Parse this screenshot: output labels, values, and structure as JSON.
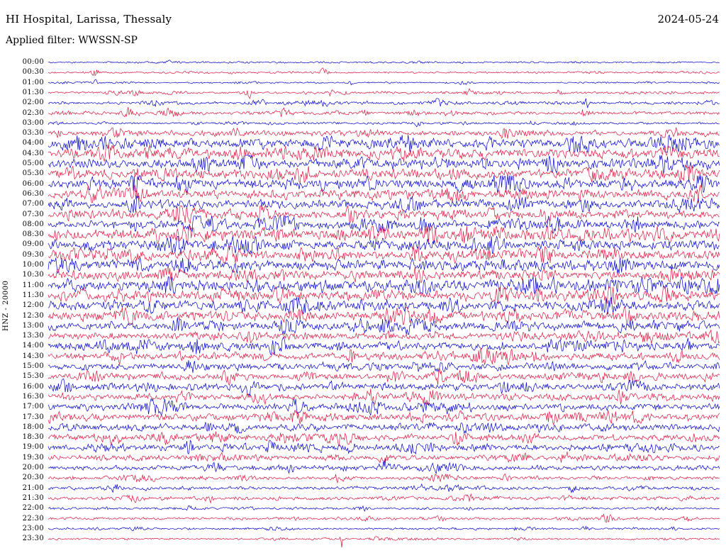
{
  "header": {
    "station_title": "HI Hospital, Larissa, Thessaly",
    "date": "2024-05-24",
    "filter_label": "Applied filter: WWSSN-SP"
  },
  "chart_data": {
    "type": "line",
    "subtype": "helicorder-seismogram",
    "title": "HI Hospital, Larissa, Thessaly",
    "date": "2024-05-24",
    "filter": "WWSSN-SP",
    "channel": "HNZ",
    "gain_label": "HNZ - 20000",
    "row_interval_minutes": 30,
    "x_axis": "time within each 30-minute row (left 00m to right 30m)",
    "legend_position": "none",
    "grid": false,
    "colors": {
      "blue": "#0000cd",
      "red": "#dc143c"
    },
    "rows": [
      {
        "label": "00:00",
        "color": "blue",
        "amp": 0.1,
        "bursts": [
          [
            0.18,
            6,
            0.002
          ]
        ]
      },
      {
        "label": "00:30",
        "color": "red",
        "amp": 0.12,
        "bursts": [
          [
            0.07,
            5,
            0.004
          ],
          [
            0.41,
            4,
            0.005
          ]
        ]
      },
      {
        "label": "01:00",
        "color": "blue",
        "amp": 0.1,
        "bursts": [
          [
            0.07,
            4,
            0.003
          ],
          [
            0.45,
            3.5,
            0.004
          ]
        ]
      },
      {
        "label": "01:30",
        "color": "red",
        "amp": 0.15,
        "bursts": [
          [
            0.3,
            4,
            0.004
          ],
          [
            0.42,
            3,
            0.004
          ],
          [
            0.63,
            2.5,
            0.004
          ],
          [
            0.76,
            3,
            0.003
          ]
        ]
      },
      {
        "label": "02:00",
        "color": "blue",
        "amp": 0.18,
        "bursts": [
          [
            0.16,
            3,
            0.005
          ],
          [
            0.41,
            3,
            0.004
          ],
          [
            0.58,
            2.5,
            0.005
          ],
          [
            0.8,
            4,
            0.004
          ]
        ]
      },
      {
        "label": "02:30",
        "color": "red",
        "amp": 0.2,
        "bursts": [
          [
            0.12,
            3,
            0.005
          ],
          [
            0.18,
            3.5,
            0.008
          ],
          [
            0.35,
            3,
            0.006
          ],
          [
            0.47,
            2.5,
            0.004
          ],
          [
            0.8,
            5,
            0.004
          ]
        ]
      },
      {
        "label": "03:00",
        "color": "blue",
        "amp": 0.15,
        "bursts": [
          [
            0.55,
            2.5,
            0.004
          ],
          [
            0.72,
            2,
            0.004
          ]
        ]
      },
      {
        "label": "03:30",
        "color": "red",
        "amp": 0.3,
        "bursts": [
          [
            0.1,
            2.5,
            0.01
          ],
          [
            0.28,
            2,
            0.006
          ],
          [
            0.48,
            2,
            0.006
          ],
          [
            0.68,
            2,
            0.006
          ],
          [
            0.93,
            2.5,
            0.01
          ]
        ]
      },
      {
        "label": "04:00",
        "color": "blue",
        "amp": 0.6,
        "bursts": [
          [
            0.79,
            3,
            0.01
          ],
          [
            0.92,
            2,
            0.008
          ]
        ]
      },
      {
        "label": "04:30",
        "color": "red",
        "amp": 0.6,
        "bursts": [
          [
            0.09,
            2.5,
            0.01
          ],
          [
            0.52,
            1.8,
            0.008
          ]
        ]
      },
      {
        "label": "05:00",
        "color": "blue",
        "amp": 0.62,
        "bursts": [
          [
            0.3,
            1.8,
            0.01
          ],
          [
            0.75,
            1.8,
            0.008
          ]
        ]
      },
      {
        "label": "05:30",
        "color": "red",
        "amp": 0.62,
        "bursts": [
          [
            0.38,
            2.2,
            0.008
          ],
          [
            0.95,
            2.2,
            0.006
          ]
        ]
      },
      {
        "label": "06:00",
        "color": "blue",
        "amp": 0.65,
        "bursts": [
          [
            0.2,
            1.8,
            0.008
          ],
          [
            0.68,
            3,
            0.008
          ]
        ]
      },
      {
        "label": "06:30",
        "color": "red",
        "amp": 0.55,
        "bursts": [
          [
            0.13,
            2,
            0.008
          ],
          [
            0.6,
            1.8,
            0.008
          ],
          [
            0.97,
            2.5,
            0.005
          ]
        ]
      },
      {
        "label": "07:00",
        "color": "blue",
        "amp": 0.55,
        "bursts": [
          [
            0.54,
            2,
            0.008
          ],
          [
            0.8,
            1.8,
            0.006
          ]
        ]
      },
      {
        "label": "07:30",
        "color": "red",
        "amp": 0.55,
        "bursts": [
          [
            0.2,
            1.8,
            0.008
          ],
          [
            0.45,
            1.8,
            0.008
          ]
        ]
      },
      {
        "label": "08:00",
        "color": "blue",
        "amp": 0.55,
        "bursts": [
          [
            0.35,
            1.8,
            0.01
          ],
          [
            0.75,
            1.8,
            0.008
          ]
        ]
      },
      {
        "label": "08:30",
        "color": "red",
        "amp": 0.7,
        "bursts": [
          [
            0.49,
            2.5,
            0.008
          ],
          [
            0.57,
            2.8,
            0.006
          ],
          [
            0.62,
            2.5,
            0.006
          ],
          [
            0.67,
            2.2,
            0.006
          ]
        ]
      },
      {
        "label": "09:00",
        "color": "blue",
        "amp": 0.62,
        "bursts": [
          [
            0.3,
            1.8,
            0.008
          ],
          [
            0.66,
            2.8,
            0.006
          ]
        ]
      },
      {
        "label": "09:30",
        "color": "red",
        "amp": 0.62,
        "bursts": [
          [
            0.27,
            2,
            0.006
          ],
          [
            0.55,
            2.2,
            0.006
          ],
          [
            0.65,
            2.5,
            0.006
          ],
          [
            0.74,
            2,
            0.006
          ]
        ]
      },
      {
        "label": "10:00",
        "color": "blue",
        "amp": 0.65,
        "bursts": [
          [
            0.2,
            1.8,
            0.008
          ],
          [
            0.85,
            2,
            0.008
          ]
        ]
      },
      {
        "label": "10:30",
        "color": "red",
        "amp": 0.58,
        "bursts": [
          [
            0.55,
            2.5,
            0.006
          ],
          [
            0.93,
            2,
            0.006
          ]
        ]
      },
      {
        "label": "11:00",
        "color": "blue",
        "amp": 0.65,
        "bursts": [
          [
            0.18,
            2.2,
            0.006
          ],
          [
            0.56,
            2.2,
            0.006
          ],
          [
            0.88,
            2.2,
            0.006
          ],
          [
            0.95,
            2.5,
            0.005
          ]
        ]
      },
      {
        "label": "11:30",
        "color": "red",
        "amp": 0.62,
        "bursts": [
          [
            0.35,
            1.8,
            0.008
          ],
          [
            0.92,
            2.5,
            0.006
          ]
        ]
      },
      {
        "label": "12:00",
        "color": "blue",
        "amp": 0.62,
        "bursts": [
          [
            0.37,
            2,
            0.01
          ],
          [
            0.6,
            1.8,
            0.008
          ]
        ]
      },
      {
        "label": "12:30",
        "color": "red",
        "amp": 0.65,
        "bursts": [
          [
            0.53,
            2.2,
            0.008
          ],
          [
            0.86,
            2.2,
            0.006
          ]
        ]
      },
      {
        "label": "13:00",
        "color": "blue",
        "amp": 0.55,
        "bursts": [
          [
            0.19,
            2.2,
            0.008
          ],
          [
            0.5,
            1.8,
            0.008
          ]
        ]
      },
      {
        "label": "13:30",
        "color": "red",
        "amp": 0.45,
        "bursts": [
          [
            0.3,
            1.8,
            0.008
          ],
          [
            0.7,
            1.8,
            0.008
          ]
        ]
      },
      {
        "label": "14:00",
        "color": "blue",
        "amp": 0.5,
        "bursts": [
          [
            0.22,
            2,
            0.008
          ],
          [
            0.75,
            1.8,
            0.006
          ]
        ]
      },
      {
        "label": "14:30",
        "color": "red",
        "amp": 0.45,
        "bursts": [
          [
            0.45,
            2.2,
            0.006
          ],
          [
            0.65,
            1.8,
            0.006
          ]
        ]
      },
      {
        "label": "15:00",
        "color": "blue",
        "amp": 0.42,
        "bursts": [
          [
            0.21,
            2.2,
            0.006
          ],
          [
            0.55,
            1.8,
            0.006
          ]
        ]
      },
      {
        "label": "15:30",
        "color": "red",
        "amp": 0.45,
        "bursts": [
          [
            0.51,
            2,
            0.006
          ],
          [
            0.58,
            2.2,
            0.006
          ],
          [
            0.63,
            2,
            0.006
          ]
        ]
      },
      {
        "label": "16:00",
        "color": "blue",
        "amp": 0.45,
        "bursts": [
          [
            0.3,
            1.8,
            0.008
          ],
          [
            0.68,
            2.5,
            0.006
          ]
        ]
      },
      {
        "label": "16:30",
        "color": "red",
        "amp": 0.42,
        "bursts": [
          [
            0.2,
            1.8,
            0.008
          ],
          [
            0.85,
            2.2,
            0.006
          ]
        ]
      },
      {
        "label": "17:00",
        "color": "blue",
        "amp": 0.42,
        "bursts": [
          [
            0.37,
            1.8,
            0.008
          ],
          [
            0.6,
            1.8,
            0.006
          ]
        ]
      },
      {
        "label": "17:30",
        "color": "red",
        "amp": 0.45,
        "bursts": [
          [
            0.37,
            2.2,
            0.006
          ],
          [
            0.75,
            1.8,
            0.008
          ]
        ]
      },
      {
        "label": "18:00",
        "color": "blue",
        "amp": 0.42,
        "bursts": [
          [
            0.28,
            1.8,
            0.008
          ],
          [
            0.62,
            2,
            0.006
          ]
        ]
      },
      {
        "label": "18:30",
        "color": "red",
        "amp": 0.42,
        "bursts": [
          [
            0.1,
            2.2,
            0.006
          ],
          [
            0.61,
            2,
            0.006
          ]
        ]
      },
      {
        "label": "19:00",
        "color": "blue",
        "amp": 0.42,
        "bursts": [
          [
            0.21,
            2.2,
            0.006
          ],
          [
            0.33,
            2.5,
            0.006
          ],
          [
            0.45,
            2,
            0.006
          ]
        ]
      },
      {
        "label": "19:30",
        "color": "red",
        "amp": 0.32,
        "bursts": [
          [
            0.5,
            2,
            0.006
          ],
          [
            0.77,
            2,
            0.006
          ]
        ]
      },
      {
        "label": "20:00",
        "color": "blue",
        "amp": 0.32,
        "bursts": [
          [
            0.25,
            2.2,
            0.006
          ],
          [
            0.5,
            2.5,
            0.006
          ]
        ]
      },
      {
        "label": "20:30",
        "color": "red",
        "amp": 0.22,
        "bursts": [
          [
            0.43,
            3,
            0.005
          ],
          [
            0.68,
            2,
            0.005
          ]
        ]
      },
      {
        "label": "21:00",
        "color": "blue",
        "amp": 0.22,
        "bursts": [
          [
            0.1,
            3,
            0.005
          ],
          [
            0.78,
            2,
            0.005
          ]
        ]
      },
      {
        "label": "21:30",
        "color": "red",
        "amp": 0.2,
        "bursts": [
          [
            0.24,
            2.5,
            0.005
          ],
          [
            0.77,
            2.5,
            0.005
          ]
        ]
      },
      {
        "label": "22:00",
        "color": "blue",
        "amp": 0.13,
        "bursts": [
          [
            0.21,
            3,
            0.004
          ],
          [
            0.47,
            3,
            0.004
          ]
        ]
      },
      {
        "label": "22:30",
        "color": "red",
        "amp": 0.16,
        "bursts": [
          [
            0.83,
            3.5,
            0.006
          ],
          [
            0.95,
            3,
            0.004
          ]
        ]
      },
      {
        "label": "23:00",
        "color": "blue",
        "amp": 0.13,
        "bursts": [
          [
            0.8,
            3,
            0.004
          ],
          [
            0.93,
            2.5,
            0.004
          ]
        ]
      },
      {
        "label": "23:30",
        "color": "red",
        "amp": 0.12,
        "bursts": [
          [
            0.437,
            14,
            0.0015
          ]
        ]
      }
    ]
  }
}
